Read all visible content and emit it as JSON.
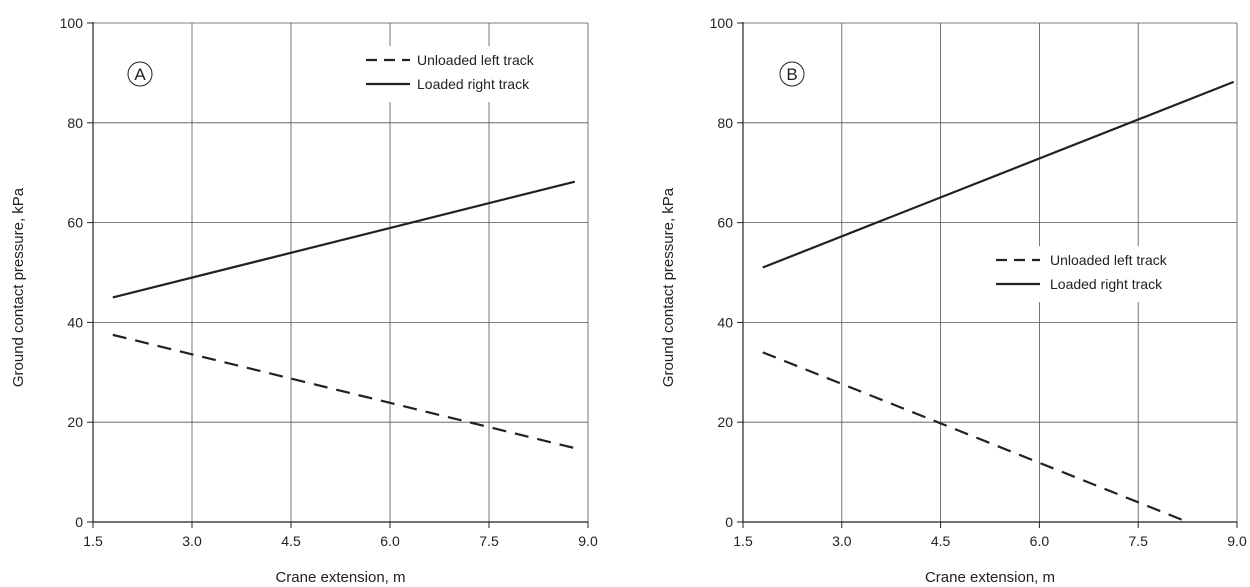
{
  "chart_data": [
    {
      "type": "line",
      "panel_label": "A",
      "xlabel": "Crane extension, m",
      "ylabel": "Ground contact pressure, kPa",
      "xlim": [
        1.5,
        9.0
      ],
      "ylim": [
        0,
        100
      ],
      "xticks": [
        "1.5",
        "3.0",
        "4.5",
        "6.0",
        "7.5",
        "9.0"
      ],
      "yticks": [
        "0",
        "20",
        "40",
        "60",
        "80",
        "100"
      ],
      "grid": true,
      "legend_position": "top-right",
      "series": [
        {
          "name": "Unloaded left track",
          "style": "dashed",
          "color": "#222222",
          "x": [
            1.8,
            8.8
          ],
          "y": [
            37.5,
            14.8
          ]
        },
        {
          "name": "Loaded right track",
          "style": "solid",
          "color": "#222222",
          "x": [
            1.8,
            8.8
          ],
          "y": [
            45.0,
            68.2
          ]
        }
      ]
    },
    {
      "type": "line",
      "panel_label": "B",
      "xlabel": "Crane extension, m",
      "ylabel": "Ground contact pressure, kPa",
      "xlim": [
        1.5,
        9.0
      ],
      "ylim": [
        0,
        100
      ],
      "xticks": [
        "1.5",
        "3.0",
        "4.5",
        "6.0",
        "7.5",
        "9.0"
      ],
      "yticks": [
        "0",
        "20",
        "40",
        "60",
        "80",
        "100"
      ],
      "grid": true,
      "legend_position": "middle-right",
      "series": [
        {
          "name": "Unloaded left track",
          "style": "dashed",
          "color": "#222222",
          "x": [
            1.8,
            8.25
          ],
          "y": [
            34.0,
            0
          ]
        },
        {
          "name": "Loaded right track",
          "style": "solid",
          "color": "#222222",
          "x": [
            1.8,
            8.95
          ],
          "y": [
            51.0,
            88.2
          ]
        }
      ]
    }
  ]
}
